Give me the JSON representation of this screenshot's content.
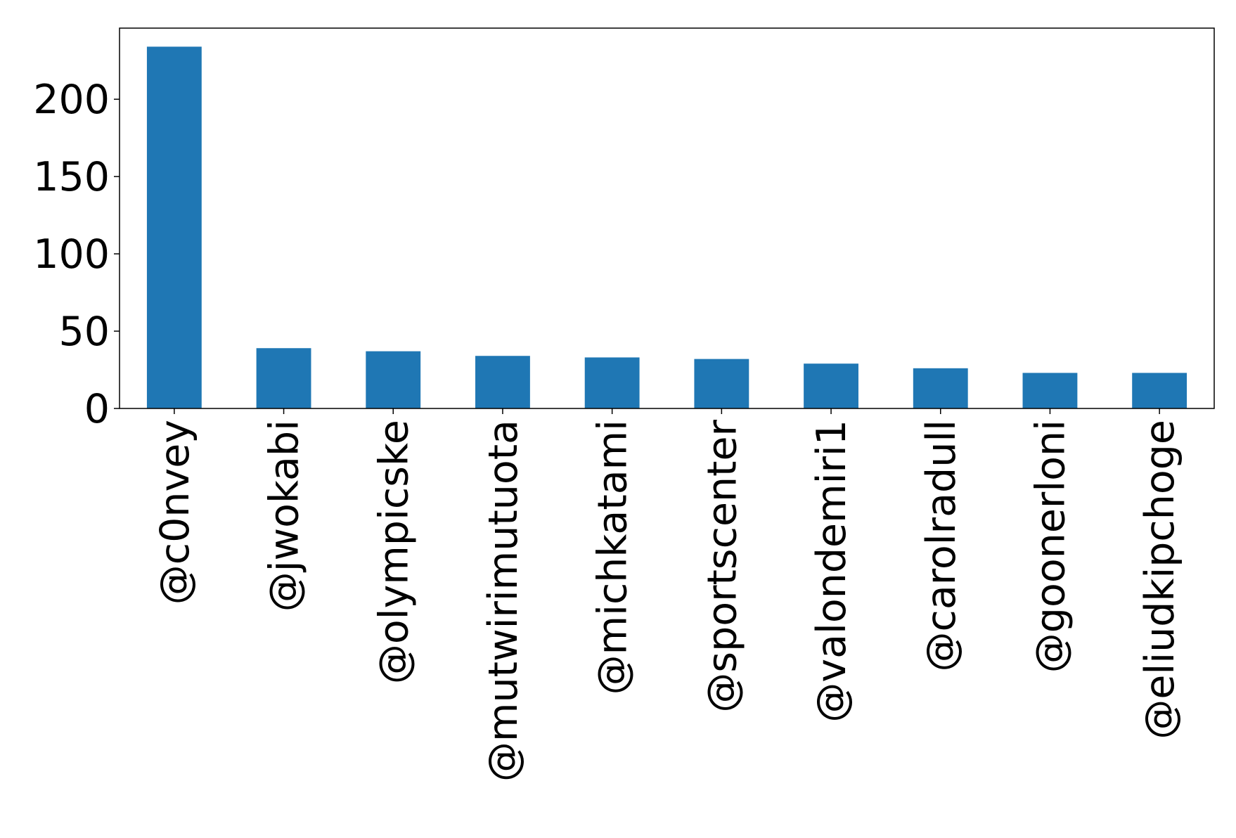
{
  "chart_data": {
    "type": "bar",
    "title": "",
    "xlabel": "",
    "ylabel": "",
    "categories": [
      "@c0nvey",
      "@jwokabi",
      "@olympicske",
      "@mutwirimutuota",
      "@michkatami",
      "@sportscenter",
      "@valondemiri1",
      "@carolradull",
      "@goonerloni",
      "@eliudkipchoge"
    ],
    "values": [
      234,
      39,
      37,
      34,
      33,
      32,
      29,
      26,
      23,
      23
    ],
    "ylim": [
      0,
      246
    ],
    "yticks": [
      0,
      50,
      100,
      150,
      200
    ],
    "ytick_labels": [
      "0",
      "50",
      "100",
      "150",
      "200"
    ],
    "grid": false,
    "legend": "none",
    "bar_color": "#1f77b4"
  }
}
